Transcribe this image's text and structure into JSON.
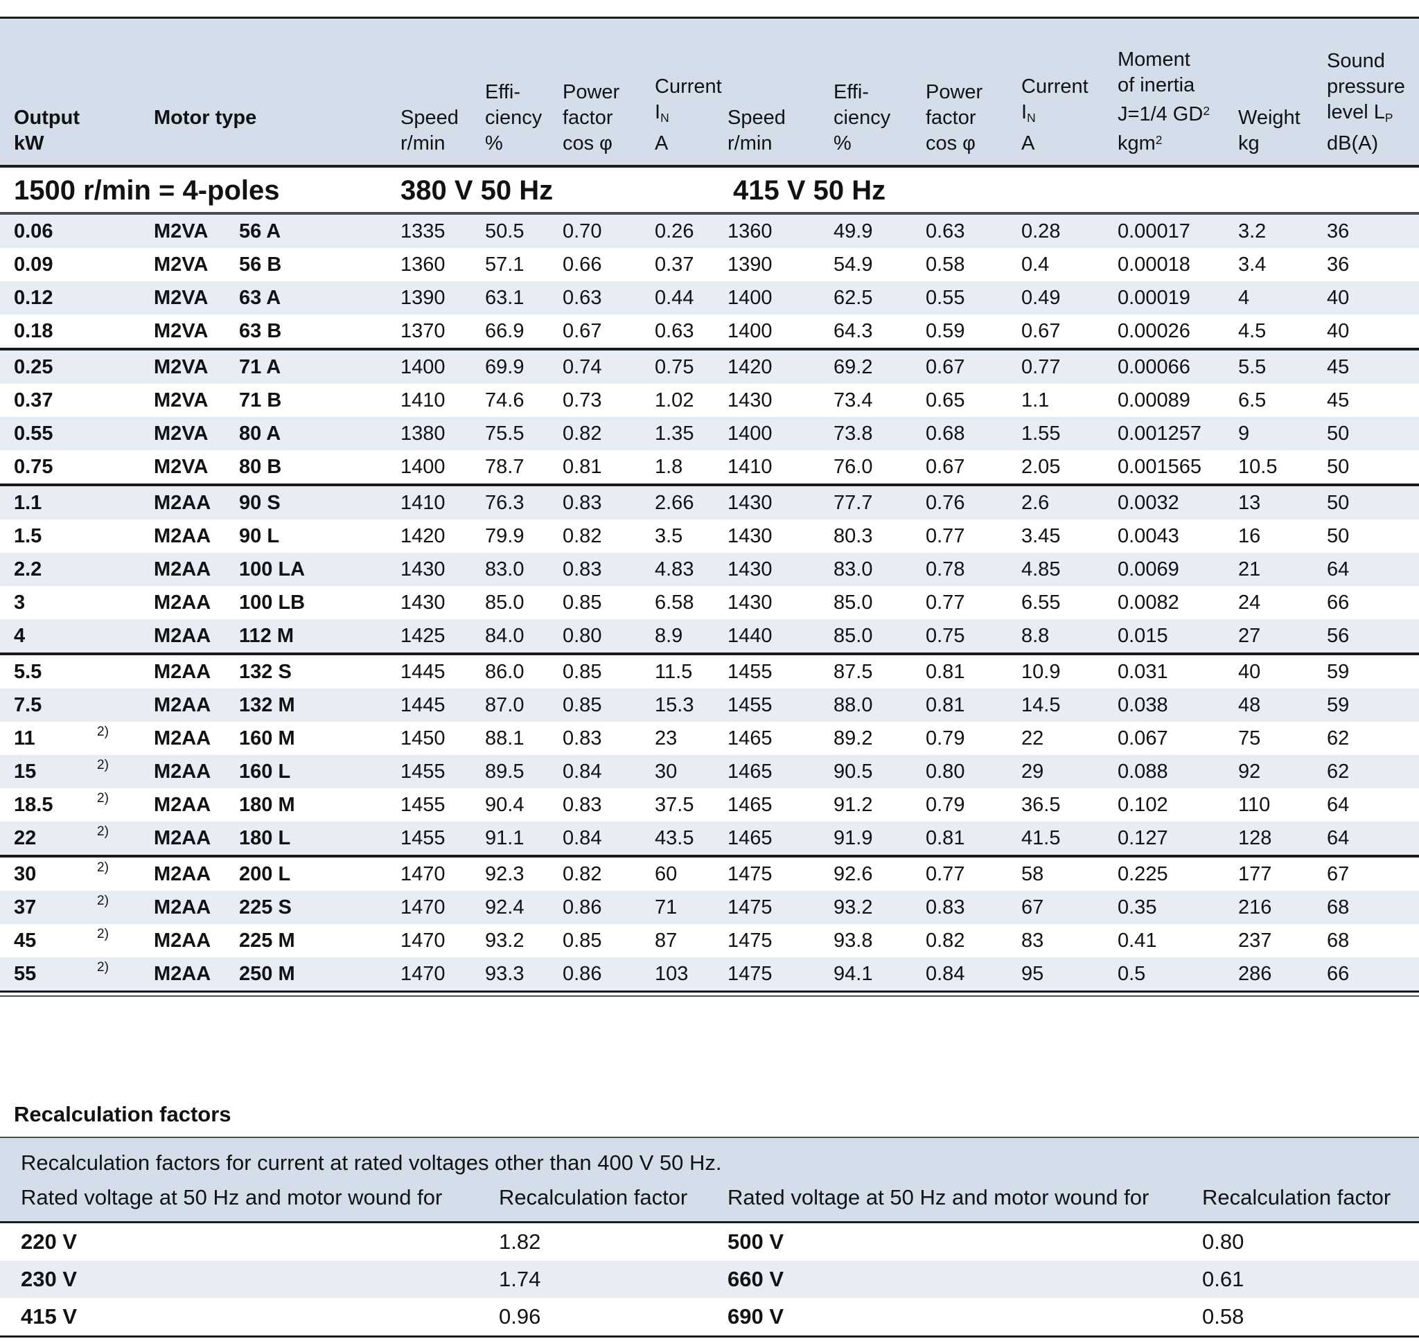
{
  "colors": {
    "header_bg": "#d4deea",
    "stripe_bg": "#e8edf5",
    "rule_black": "#1b1b1b",
    "rule_gray": "#4a4e52",
    "text": "#101214"
  },
  "main_table": {
    "header": {
      "output": [
        "Output",
        "kW"
      ],
      "motor_type": [
        "Motor type"
      ],
      "speed380": [
        "Speed",
        "r/min"
      ],
      "eff380": [
        "Effi-",
        "ciency",
        "%"
      ],
      "pf380": [
        "Power",
        "factor",
        "cos φ"
      ],
      "cur380": [
        "Current",
        "I~N~",
        "A"
      ],
      "speed415": [
        "Speed",
        "r/min"
      ],
      "eff415": [
        "Effi-",
        "ciency",
        "%"
      ],
      "pf415": [
        "Power",
        "factor",
        "cos φ"
      ],
      "cur415": [
        "Current",
        "I~N~",
        "A"
      ],
      "inertia": [
        "Moment",
        "of inertia",
        "J=1/4 GD^2^",
        "kgm^2^"
      ],
      "weight": [
        "Weight",
        "kg"
      ],
      "sound": [
        "Sound",
        "pressure",
        "level L~P~",
        "dB(A)"
      ]
    },
    "subheader": {
      "poles": "1500 r/min = 4-poles",
      "v380": "380 V 50 Hz",
      "v415": "415 V 50 Hz"
    },
    "rows": [
      [
        "0.06",
        "",
        "M2VA",
        "56 A",
        "1335",
        "50.5",
        "0.70",
        "0.26",
        "1360",
        "49.9",
        "0.63",
        "0.28",
        "0.00017",
        "3.2",
        "36"
      ],
      [
        "0.09",
        "",
        "M2VA",
        "56 B",
        "1360",
        "57.1",
        "0.66",
        "0.37",
        "1390",
        "54.9",
        "0.58",
        "0.4",
        "0.00018",
        "3.4",
        "36"
      ],
      [
        "0.12",
        "",
        "M2VA",
        "63 A",
        "1390",
        "63.1",
        "0.63",
        "0.44",
        "1400",
        "62.5",
        "0.55",
        "0.49",
        "0.00019",
        "4",
        "40"
      ],
      [
        "0.18",
        "",
        "M2VA",
        "63 B",
        "1370",
        "66.9",
        "0.67",
        "0.63",
        "1400",
        "64.3",
        "0.59",
        "0.67",
        "0.00026",
        "4.5",
        "40"
      ],
      [
        "0.25",
        "",
        "M2VA",
        "71 A",
        "1400",
        "69.9",
        "0.74",
        "0.75",
        "1420",
        "69.2",
        "0.67",
        "0.77",
        "0.00066",
        "5.5",
        "45"
      ],
      [
        "0.37",
        "",
        "M2VA",
        "71 B",
        "1410",
        "74.6",
        "0.73",
        "1.02",
        "1430",
        "73.4",
        "0.65",
        "1.1",
        "0.00089",
        "6.5",
        "45"
      ],
      [
        "0.55",
        "",
        "M2VA",
        "80 A",
        "1380",
        "75.5",
        "0.82",
        "1.35",
        "1400",
        "73.8",
        "0.68",
        "1.55",
        "0.001257",
        "9",
        "50"
      ],
      [
        "0.75",
        "",
        "M2VA",
        "80 B",
        "1400",
        "78.7",
        "0.81",
        "1.8",
        "1410",
        "76.0",
        "0.67",
        "2.05",
        "0.001565",
        "10.5",
        "50"
      ],
      [
        "1.1",
        "",
        "M2AA",
        "90 S",
        "1410",
        "76.3",
        "0.83",
        "2.66",
        "1430",
        "77.7",
        "0.76",
        "2.6",
        "0.0032",
        "13",
        "50"
      ],
      [
        "1.5",
        "",
        "M2AA",
        "90 L",
        "1420",
        "79.9",
        "0.82",
        "3.5",
        "1430",
        "80.3",
        "0.77",
        "3.45",
        "0.0043",
        "16",
        "50"
      ],
      [
        "2.2",
        "",
        "M2AA",
        "100 LA",
        "1430",
        "83.0",
        "0.83",
        "4.83",
        "1430",
        "83.0",
        "0.78",
        "4.85",
        "0.0069",
        "21",
        "64"
      ],
      [
        "3",
        "",
        "M2AA",
        "100 LB",
        "1430",
        "85.0",
        "0.85",
        "6.58",
        "1430",
        "85.0",
        "0.77",
        "6.55",
        "0.0082",
        "24",
        "66"
      ],
      [
        "4",
        "",
        "M2AA",
        "112 M",
        "1425",
        "84.0",
        "0.80",
        "8.9",
        "1440",
        "85.0",
        "0.75",
        "8.8",
        "0.015",
        "27",
        "56"
      ],
      [
        "5.5",
        "",
        "M2AA",
        "132 S",
        "1445",
        "86.0",
        "0.85",
        "11.5",
        "1455",
        "87.5",
        "0.81",
        "10.9",
        "0.031",
        "40",
        "59"
      ],
      [
        "7.5",
        "",
        "M2AA",
        "132 M",
        "1445",
        "87.0",
        "0.85",
        "15.3",
        "1455",
        "88.0",
        "0.81",
        "14.5",
        "0.038",
        "48",
        "59"
      ],
      [
        "11",
        "2)",
        "M2AA",
        "160 M",
        "1450",
        "88.1",
        "0.83",
        "23",
        "1465",
        "89.2",
        "0.79",
        "22",
        "0.067",
        "75",
        "62"
      ],
      [
        "15",
        "2)",
        "M2AA",
        "160 L",
        "1455",
        "89.5",
        "0.84",
        "30",
        "1465",
        "90.5",
        "0.80",
        "29",
        "0.088",
        "92",
        "62"
      ],
      [
        "18.5",
        "2)",
        "M2AA",
        "180 M",
        "1455",
        "90.4",
        "0.83",
        "37.5",
        "1465",
        "91.2",
        "0.79",
        "36.5",
        "0.102",
        "110",
        "64"
      ],
      [
        "22",
        "2)",
        "M2AA",
        "180 L",
        "1455",
        "91.1",
        "0.84",
        "43.5",
        "1465",
        "91.9",
        "0.81",
        "41.5",
        "0.127",
        "128",
        "64"
      ],
      [
        "30",
        "2)",
        "M2AA",
        "200 L",
        "1470",
        "92.3",
        "0.82",
        "60",
        "1475",
        "92.6",
        "0.77",
        "58",
        "0.225",
        "177",
        "67"
      ],
      [
        "37",
        "2)",
        "M2AA",
        "225 S",
        "1470",
        "92.4",
        "0.86",
        "71",
        "1475",
        "93.2",
        "0.83",
        "67",
        "0.35",
        "216",
        "68"
      ],
      [
        "45",
        "2)",
        "M2AA",
        "225 M",
        "1470",
        "93.2",
        "0.85",
        "87",
        "1475",
        "93.8",
        "0.82",
        "83",
        "0.41",
        "237",
        "68"
      ],
      [
        "55",
        "2)",
        "M2AA",
        "250 M",
        "1470",
        "93.3",
        "0.86",
        "103",
        "1475",
        "94.1",
        "0.84",
        "95",
        "0.5",
        "286",
        "66"
      ]
    ],
    "group_breaks_after": [
      3,
      7,
      12,
      18
    ]
  },
  "recalc": {
    "heading": "Recalculation factors",
    "note": "Recalculation factors for current at rated voltages other than 400 V 50 Hz.",
    "col_voltage": "Rated voltage at 50 Hz and motor wound for",
    "col_factor": "Recalculation factor",
    "rows": [
      [
        "220 V",
        "1.82",
        "500 V",
        "0.80"
      ],
      [
        "230 V",
        "1.74",
        "660 V",
        "0.61"
      ],
      [
        "415 V",
        "0.96",
        "690 V",
        "0.58"
      ]
    ]
  }
}
